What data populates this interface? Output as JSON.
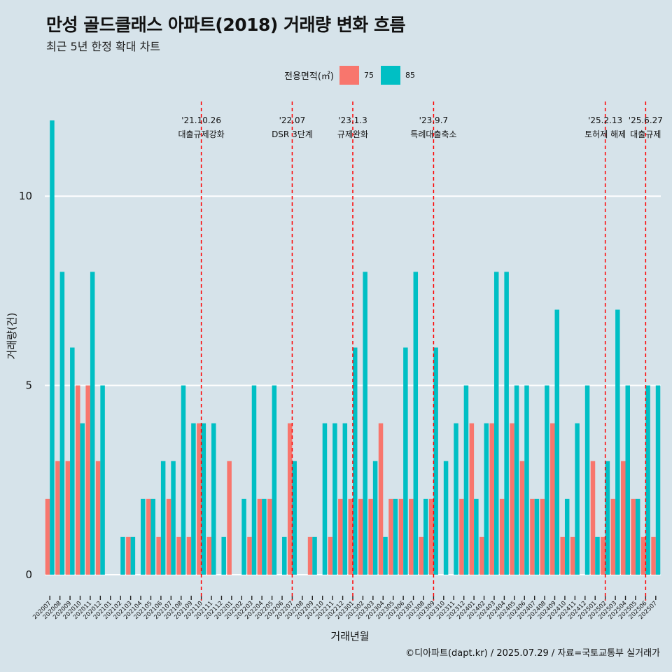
{
  "title": "만성 골드클래스 아파트(2018) 거래량 변화 흐름",
  "subtitle": "최근 5년 한정 확대 차트",
  "caption": "©디아파트(dapt.kr) / 2025.07.29 / 자료=국토교통부 실거래가",
  "legend": {
    "title": "전용면적(㎡)",
    "items": [
      {
        "label": "75",
        "color": "#f8766d"
      },
      {
        "label": "85",
        "color": "#00bfc4"
      }
    ]
  },
  "chart_data": {
    "type": "bar",
    "title": "만성 골드클래스 아파트(2018) 거래량 변화 흐름",
    "xlabel": "거래년월",
    "ylabel": "거래량(건)",
    "ylim": [
      -0.5,
      12.5
    ],
    "yticks": [
      0,
      5,
      10
    ],
    "categories": [
      "202007",
      "202008",
      "202009",
      "202010",
      "202011",
      "202012",
      "202101",
      "202102",
      "202103",
      "202104",
      "202105",
      "202106",
      "202107",
      "202108",
      "202109",
      "202110",
      "202111",
      "202112",
      "202201",
      "202202",
      "202203",
      "202204",
      "202205",
      "202206",
      "202207",
      "202208",
      "202209",
      "202210",
      "202211",
      "202212",
      "202301",
      "202302",
      "202303",
      "202304",
      "202305",
      "202306",
      "202307",
      "202308",
      "202309",
      "202310",
      "202311",
      "202312",
      "202401",
      "202402",
      "202403",
      "202404",
      "202405",
      "202406",
      "202407",
      "202408",
      "202409",
      "202410",
      "202411",
      "202412",
      "202501",
      "202502",
      "202503",
      "202504",
      "202505",
      "202506",
      "202507"
    ],
    "series": [
      {
        "name": "75",
        "color": "#f8766d",
        "values": [
          2,
          3,
          3,
          5,
          5,
          3,
          0,
          0,
          1,
          0,
          2,
          1,
          2,
          1,
          1,
          4,
          1,
          0,
          3,
          0,
          1,
          2,
          2,
          0,
          4,
          0,
          1,
          0,
          1,
          2,
          2,
          2,
          2,
          4,
          2,
          2,
          2,
          1,
          2,
          0,
          0,
          2,
          4,
          1,
          4,
          2,
          4,
          3,
          2,
          2,
          4,
          1,
          1,
          0,
          3,
          1,
          2,
          3,
          2,
          1,
          1
        ]
      },
      {
        "name": "85",
        "color": "#00bfc4",
        "values": [
          12,
          8,
          6,
          4,
          8,
          5,
          0,
          1,
          1,
          2,
          2,
          3,
          3,
          5,
          4,
          4,
          4,
          1,
          0,
          2,
          5,
          2,
          5,
          1,
          3,
          0,
          1,
          4,
          4,
          4,
          6,
          8,
          3,
          1,
          2,
          6,
          8,
          2,
          6,
          3,
          4,
          5,
          2,
          4,
          8,
          8,
          5,
          5,
          2,
          5,
          7,
          2,
          4,
          5,
          1,
          3,
          7,
          5,
          2,
          5,
          5
        ]
      }
    ],
    "events": [
      {
        "date": "'21.10.26",
        "label": "대출규제강화",
        "at": "202110"
      },
      {
        "date": "'22.07",
        "label": "DSR 3단계",
        "at": "202207"
      },
      {
        "date": "'23.1.3",
        "label": "규제완화",
        "at": "202301"
      },
      {
        "date": "'23.9.7",
        "label": "특례대출축소",
        "at": "202309"
      },
      {
        "date": "'25.2.13",
        "label": "토허제 해제",
        "at": "202502"
      },
      {
        "date": "'25.6.27",
        "label": "대출규제",
        "at": "202506"
      }
    ]
  }
}
